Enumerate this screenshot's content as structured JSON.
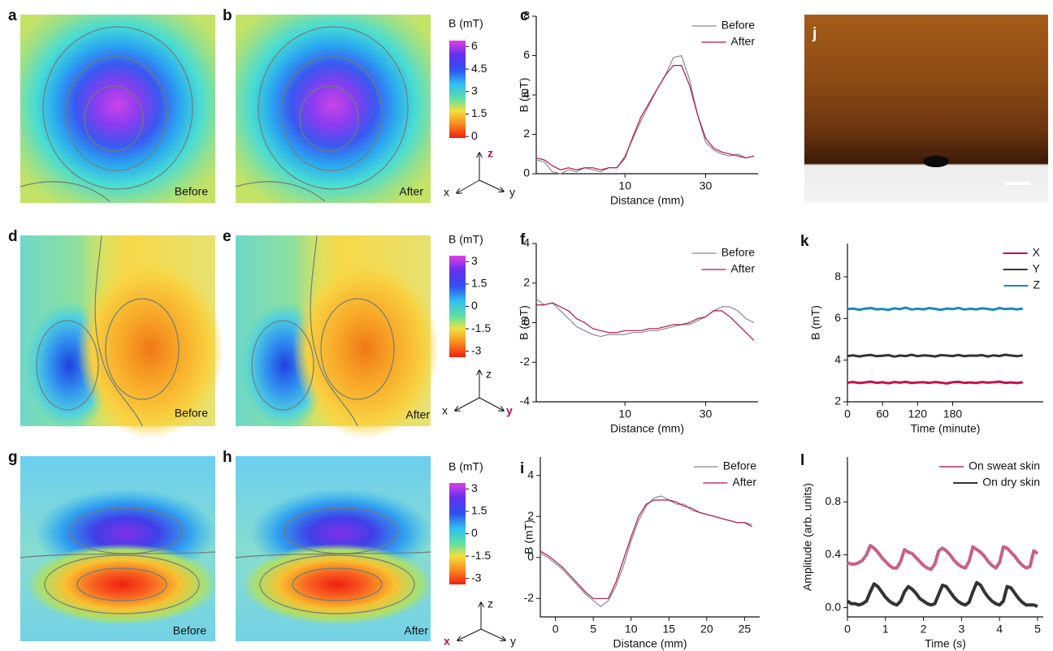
{
  "heatmaps": [
    {
      "letter": "a",
      "caption": "Before"
    },
    {
      "letter": "b",
      "caption": "After"
    },
    {
      "letter": "d",
      "caption": "Before"
    },
    {
      "letter": "e",
      "caption": "After"
    },
    {
      "letter": "g",
      "caption": "Before"
    },
    {
      "letter": "h",
      "caption": "After"
    }
  ],
  "colorbars": [
    {
      "label": "B (mT)",
      "lim": [
        -0.1,
        6.4
      ],
      "ticks": [
        6,
        4.5,
        3,
        1.5,
        0
      ]
    },
    {
      "label": "B (mT)",
      "lim": [
        -3.4,
        3.4
      ],
      "ticks": [
        3,
        1.5,
        0,
        -1.5,
        -3
      ]
    },
    {
      "label": "B (mT)",
      "lim": [
        -3.4,
        3.4
      ],
      "ticks": [
        3,
        1.5,
        0,
        -1.5,
        -3
      ]
    }
  ],
  "triads": [
    {
      "x": "x",
      "y": "y",
      "z": "z",
      "highlight": "z"
    },
    {
      "x": "x",
      "y": "y",
      "z": "z",
      "highlight": "y"
    },
    {
      "x": "x",
      "y": "y",
      "z": "z",
      "highlight": "x"
    }
  ],
  "photo": {
    "letter": "j"
  },
  "chart_data": [
    {
      "type": "line",
      "letter": "c",
      "xlabel": "Distance (mm)",
      "ylabel": "B (mT)",
      "legend": "upper right",
      "xlim": [
        -12,
        43
      ],
      "xticks": [
        10,
        30
      ],
      "ylim": [
        0,
        8
      ],
      "yticks": [
        0,
        2,
        4,
        6,
        8
      ],
      "x": [
        -12,
        -10,
        -8,
        -6,
        -4,
        -2,
        0,
        2,
        4,
        6,
        8,
        10,
        12,
        14,
        16,
        18,
        20,
        22,
        24,
        26,
        28,
        30,
        32,
        34,
        36,
        38,
        40,
        42
      ],
      "series": [
        {
          "name": "Before",
          "color": "#8a8a8a",
          "values": [
            0.7,
            0.6,
            0.1,
            0.0,
            0.2,
            0.1,
            0.3,
            0.2,
            0.1,
            0.3,
            0.3,
            0.9,
            1.8,
            2.7,
            3.5,
            4.3,
            5.0,
            5.9,
            6.0,
            4.8,
            3.0,
            1.6,
            1.2,
            1.0,
            0.9,
            1.0,
            0.8,
            0.9
          ]
        },
        {
          "name": "After",
          "color": "#b0144c",
          "values": [
            0.8,
            0.7,
            0.4,
            0.2,
            0.3,
            0.2,
            0.3,
            0.3,
            0.2,
            0.3,
            0.3,
            0.8,
            1.9,
            2.9,
            3.6,
            4.3,
            5.0,
            5.5,
            5.5,
            4.5,
            3.0,
            1.8,
            1.3,
            1.1,
            1.0,
            0.9,
            0.8,
            0.9
          ]
        }
      ]
    },
    {
      "type": "line",
      "letter": "f",
      "xlabel": "Distance (mm)",
      "ylabel": "B (mT)",
      "legend": "upper right",
      "xlim": [
        -12,
        43
      ],
      "xticks": [
        10,
        30
      ],
      "ylim": [
        -4,
        4
      ],
      "yticks": [
        -4,
        -2,
        0,
        2,
        4
      ],
      "x": [
        -12,
        -10,
        -8,
        -6,
        -4,
        -2,
        0,
        2,
        4,
        6,
        8,
        10,
        12,
        14,
        16,
        18,
        20,
        22,
        24,
        26,
        28,
        30,
        32,
        34,
        36,
        38,
        40,
        42
      ],
      "series": [
        {
          "name": "Before",
          "color": "#8a8a8a",
          "values": [
            1.2,
            0.9,
            1.0,
            0.6,
            0.2,
            -0.2,
            -0.4,
            -0.6,
            -0.7,
            -0.6,
            -0.6,
            -0.6,
            -0.5,
            -0.5,
            -0.4,
            -0.4,
            -0.3,
            -0.2,
            -0.1,
            -0.1,
            0.1,
            0.3,
            0.6,
            0.8,
            0.8,
            0.6,
            0.2,
            0.0
          ]
        },
        {
          "name": "After",
          "color": "#b0144c",
          "values": [
            0.9,
            0.9,
            1.0,
            0.8,
            0.6,
            0.2,
            0.0,
            -0.3,
            -0.4,
            -0.5,
            -0.5,
            -0.4,
            -0.4,
            -0.4,
            -0.3,
            -0.3,
            -0.2,
            -0.1,
            -0.1,
            0.0,
            0.2,
            0.3,
            0.6,
            0.6,
            0.3,
            -0.1,
            -0.5,
            -0.9
          ]
        }
      ]
    },
    {
      "type": "line",
      "letter": "i",
      "xlabel": "Distance (mm)",
      "ylabel": "B (mT)",
      "legend": "upper right",
      "xlim": [
        -2,
        27
      ],
      "xticks": [
        0,
        5,
        10,
        15,
        20,
        25
      ],
      "ylim": [
        -2.9,
        4.9
      ],
      "yticks": [
        -2,
        0,
        2,
        4
      ],
      "x": [
        -2,
        -1,
        0,
        1,
        2,
        3,
        4,
        5,
        6,
        7,
        8,
        9,
        10,
        11,
        12,
        13,
        14,
        15,
        16,
        17,
        18,
        19,
        20,
        21,
        22,
        23,
        24,
        25,
        26
      ],
      "series": [
        {
          "name": "Before",
          "color": "#8a8a8a",
          "values": [
            0.2,
            0.0,
            -0.3,
            -0.6,
            -1.0,
            -1.4,
            -1.8,
            -2.1,
            -2.4,
            -2.1,
            -1.4,
            -0.4,
            0.8,
            1.8,
            2.5,
            2.9,
            3.0,
            2.8,
            2.6,
            2.6,
            2.3,
            2.2,
            2.1,
            2.0,
            1.9,
            1.8,
            1.7,
            1.7,
            1.6
          ]
        },
        {
          "name": "After",
          "color": "#b0144c",
          "values": [
            0.3,
            0.1,
            -0.2,
            -0.5,
            -0.9,
            -1.3,
            -1.7,
            -2.0,
            -2.0,
            -2.0,
            -1.2,
            -0.1,
            1.0,
            2.0,
            2.6,
            2.8,
            2.8,
            2.8,
            2.7,
            2.5,
            2.4,
            2.2,
            2.1,
            2.0,
            1.9,
            1.8,
            1.7,
            1.7,
            1.5
          ]
        }
      ]
    },
    {
      "type": "line",
      "letter": "k",
      "xlabel": "Time (minute)",
      "ylabel": "B (mT)",
      "legend": "upper right",
      "xlim": [
        0,
        335
      ],
      "xticks": [
        0,
        60,
        120,
        180
      ],
      "ylim": [
        2,
        9.6
      ],
      "yticks": [
        2,
        4,
        6,
        8
      ],
      "x": [
        0,
        10,
        20,
        30,
        40,
        50,
        60,
        70,
        80,
        90,
        100,
        110,
        120,
        130,
        140,
        150,
        160,
        170,
        180,
        190,
        200,
        210,
        220,
        230,
        240,
        250,
        260,
        270,
        280,
        290,
        300
      ],
      "series": [
        {
          "name": "X",
          "color": "#c8104a",
          "values": [
            2.92,
            2.95,
            2.9,
            2.93,
            2.97,
            2.91,
            2.94,
            2.89,
            2.95,
            2.92,
            2.96,
            2.9,
            2.93,
            2.94,
            2.91,
            2.95,
            2.92,
            2.88,
            2.94,
            2.96,
            2.91,
            2.93,
            2.9,
            2.95,
            2.92,
            2.94,
            2.97,
            2.91,
            2.93,
            2.9,
            2.94
          ]
        },
        {
          "name": "Y",
          "color": "#333333",
          "values": [
            4.2,
            4.23,
            4.18,
            4.22,
            4.25,
            4.19,
            4.21,
            4.24,
            4.17,
            4.22,
            4.2,
            4.26,
            4.19,
            4.23,
            4.21,
            4.18,
            4.24,
            4.22,
            4.2,
            4.25,
            4.19,
            4.22,
            4.21,
            4.24,
            4.18,
            4.23,
            4.2,
            4.26,
            4.22,
            4.19,
            4.23
          ]
        },
        {
          "name": "Z",
          "color": "#1a8ab8",
          "values": [
            6.45,
            6.48,
            6.42,
            6.47,
            6.5,
            6.44,
            6.46,
            6.41,
            6.49,
            6.45,
            6.52,
            6.43,
            6.47,
            6.44,
            6.5,
            6.46,
            6.42,
            6.48,
            6.45,
            6.51,
            6.43,
            6.47,
            6.44,
            6.49,
            6.46,
            6.42,
            6.5,
            6.45,
            6.48,
            6.44,
            6.47
          ]
        }
      ]
    },
    {
      "type": "line",
      "letter": "l",
      "xlabel": "Time (s)",
      "ylabel": "Amplitude (arb. units)",
      "legend": "upper right",
      "xlim": [
        0,
        5.15
      ],
      "xticks": [
        0,
        1,
        2,
        3,
        4,
        5
      ],
      "ylim": [
        -0.07,
        1.14
      ],
      "yticks": [
        {
          "value": 0,
          "label": "0.0"
        },
        0.4,
        0.8
      ],
      "x": [
        0,
        0.1,
        0.2,
        0.3,
        0.4,
        0.5,
        0.6,
        0.7,
        0.8,
        0.9,
        1,
        1.1,
        1.2,
        1.3,
        1.4,
        1.5,
        1.6,
        1.7,
        1.8,
        1.9,
        2,
        2.1,
        2.2,
        2.3,
        2.4,
        2.5,
        2.6,
        2.7,
        2.8,
        2.9,
        3,
        3.1,
        3.2,
        3.3,
        3.4,
        3.5,
        3.6,
        3.7,
        3.8,
        3.9,
        4,
        4.1,
        4.2,
        4.3,
        4.4,
        4.5,
        4.6,
        4.7,
        4.8,
        4.9,
        5
      ],
      "series": [
        {
          "name": "On sweat skin",
          "color": "#c8608a",
          "values": [
            0.34,
            0.33,
            0.33,
            0.34,
            0.36,
            0.4,
            0.47,
            0.45,
            0.42,
            0.38,
            0.35,
            0.32,
            0.3,
            0.3,
            0.35,
            0.44,
            0.42,
            0.41,
            0.38,
            0.35,
            0.32,
            0.3,
            0.29,
            0.33,
            0.43,
            0.45,
            0.43,
            0.4,
            0.36,
            0.33,
            0.31,
            0.3,
            0.35,
            0.46,
            0.44,
            0.42,
            0.39,
            0.35,
            0.32,
            0.3,
            0.34,
            0.46,
            0.45,
            0.42,
            0.39,
            0.35,
            0.32,
            0.3,
            0.31,
            0.43,
            0.41
          ]
        },
        {
          "name": "On dry skin",
          "color": "#333333",
          "values": [
            0.05,
            0.03,
            0.03,
            0.02,
            0.03,
            0.05,
            0.12,
            0.18,
            0.16,
            0.12,
            0.08,
            0.05,
            0.03,
            0.02,
            0.05,
            0.12,
            0.16,
            0.14,
            0.11,
            0.07,
            0.05,
            0.03,
            0.02,
            0.03,
            0.1,
            0.17,
            0.16,
            0.12,
            0.08,
            0.05,
            0.03,
            0.02,
            0.04,
            0.12,
            0.19,
            0.17,
            0.12,
            0.08,
            0.05,
            0.03,
            0.02,
            0.05,
            0.16,
            0.15,
            0.11,
            0.07,
            0.04,
            0.02,
            0.02,
            0.02,
            0.01
          ]
        }
      ]
    }
  ]
}
